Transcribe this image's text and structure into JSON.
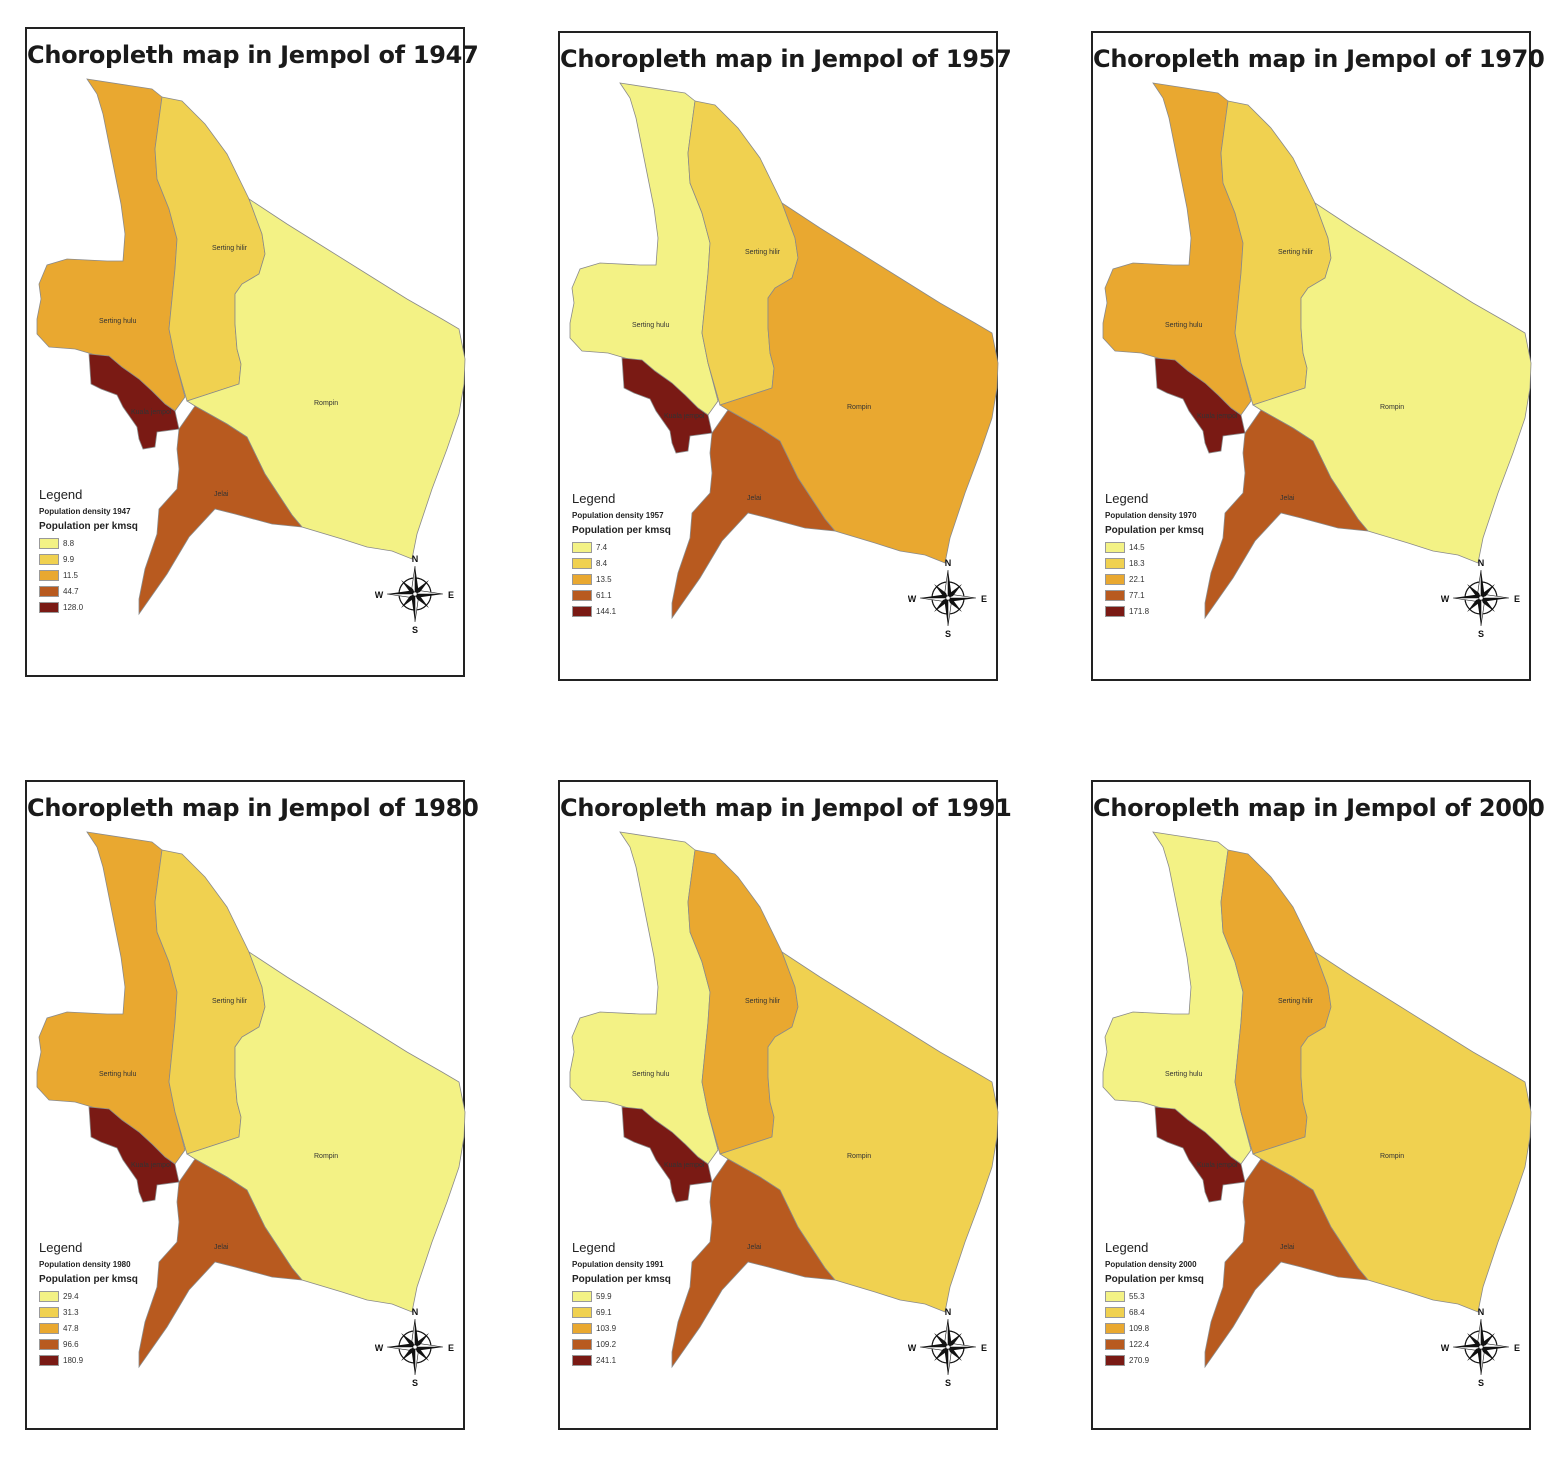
{
  "colors": {
    "c1": "#f3f285",
    "c2": "#f0d150",
    "c3": "#e9a830",
    "c4": "#b85a1f",
    "c5": "#7a1a14"
  },
  "regions": {
    "serting_hulu": "Serting hulu",
    "serting_hilir": "Serting hilir",
    "rompin": "Rompin",
    "kuala_jempol": "Kuala jempol",
    "jelai": "Jelai"
  },
  "legend_labels": {
    "title": "Legend",
    "heading": "Population per kmsq"
  },
  "compass": {
    "n": "N",
    "s": "S",
    "e": "E",
    "w": "W"
  },
  "maps": [
    {
      "title": "Choropleth map in Jempol of 1947",
      "subtitle": "Population density 1947",
      "classes": [
        "8.8",
        "9.9",
        "11.5",
        "44.7",
        "128.0"
      ],
      "fills": {
        "serting_hulu": 3,
        "serting_hilir": 2,
        "rompin": 1,
        "kuala_jempol": 5,
        "jelai": 4
      }
    },
    {
      "title": "Choropleth map in Jempol of 1957",
      "subtitle": "Population density 1957",
      "classes": [
        "7.4",
        "8.4",
        "13.5",
        "61.1",
        "144.1"
      ],
      "fills": {
        "serting_hulu": 1,
        "serting_hilir": 2,
        "rompin": 3,
        "kuala_jempol": 5,
        "jelai": 4
      }
    },
    {
      "title": "Choropleth map in Jempol of 1970",
      "subtitle": "Population density 1970",
      "classes": [
        "14.5",
        "18.3",
        "22.1",
        "77.1",
        "171.8"
      ],
      "fills": {
        "serting_hulu": 3,
        "serting_hilir": 2,
        "rompin": 1,
        "kuala_jempol": 5,
        "jelai": 4
      }
    },
    {
      "title": "Choropleth map in Jempol of 1980",
      "subtitle": "Population density 1980",
      "classes": [
        "29.4",
        "31.3",
        "47.8",
        "96.6",
        "180.9"
      ],
      "fills": {
        "serting_hulu": 3,
        "serting_hilir": 2,
        "rompin": 1,
        "kuala_jempol": 5,
        "jelai": 4
      }
    },
    {
      "title": "Choropleth map in Jempol of 1991",
      "subtitle": "Population density 1991",
      "classes": [
        "59.9",
        "69.1",
        "103.9",
        "109.2",
        "241.1"
      ],
      "fills": {
        "serting_hulu": 1,
        "serting_hilir": 3,
        "rompin": 2,
        "kuala_jempol": 5,
        "jelai": 4
      }
    },
    {
      "title": "Choropleth map in Jempol of 2000",
      "subtitle": "Population density 2000",
      "classes": [
        "55.3",
        "68.4",
        "109.8",
        "122.4",
        "270.9"
      ],
      "fills": {
        "serting_hulu": 1,
        "serting_hilir": 3,
        "rompin": 2,
        "kuala_jempol": 5,
        "jelai": 4
      }
    }
  ]
}
